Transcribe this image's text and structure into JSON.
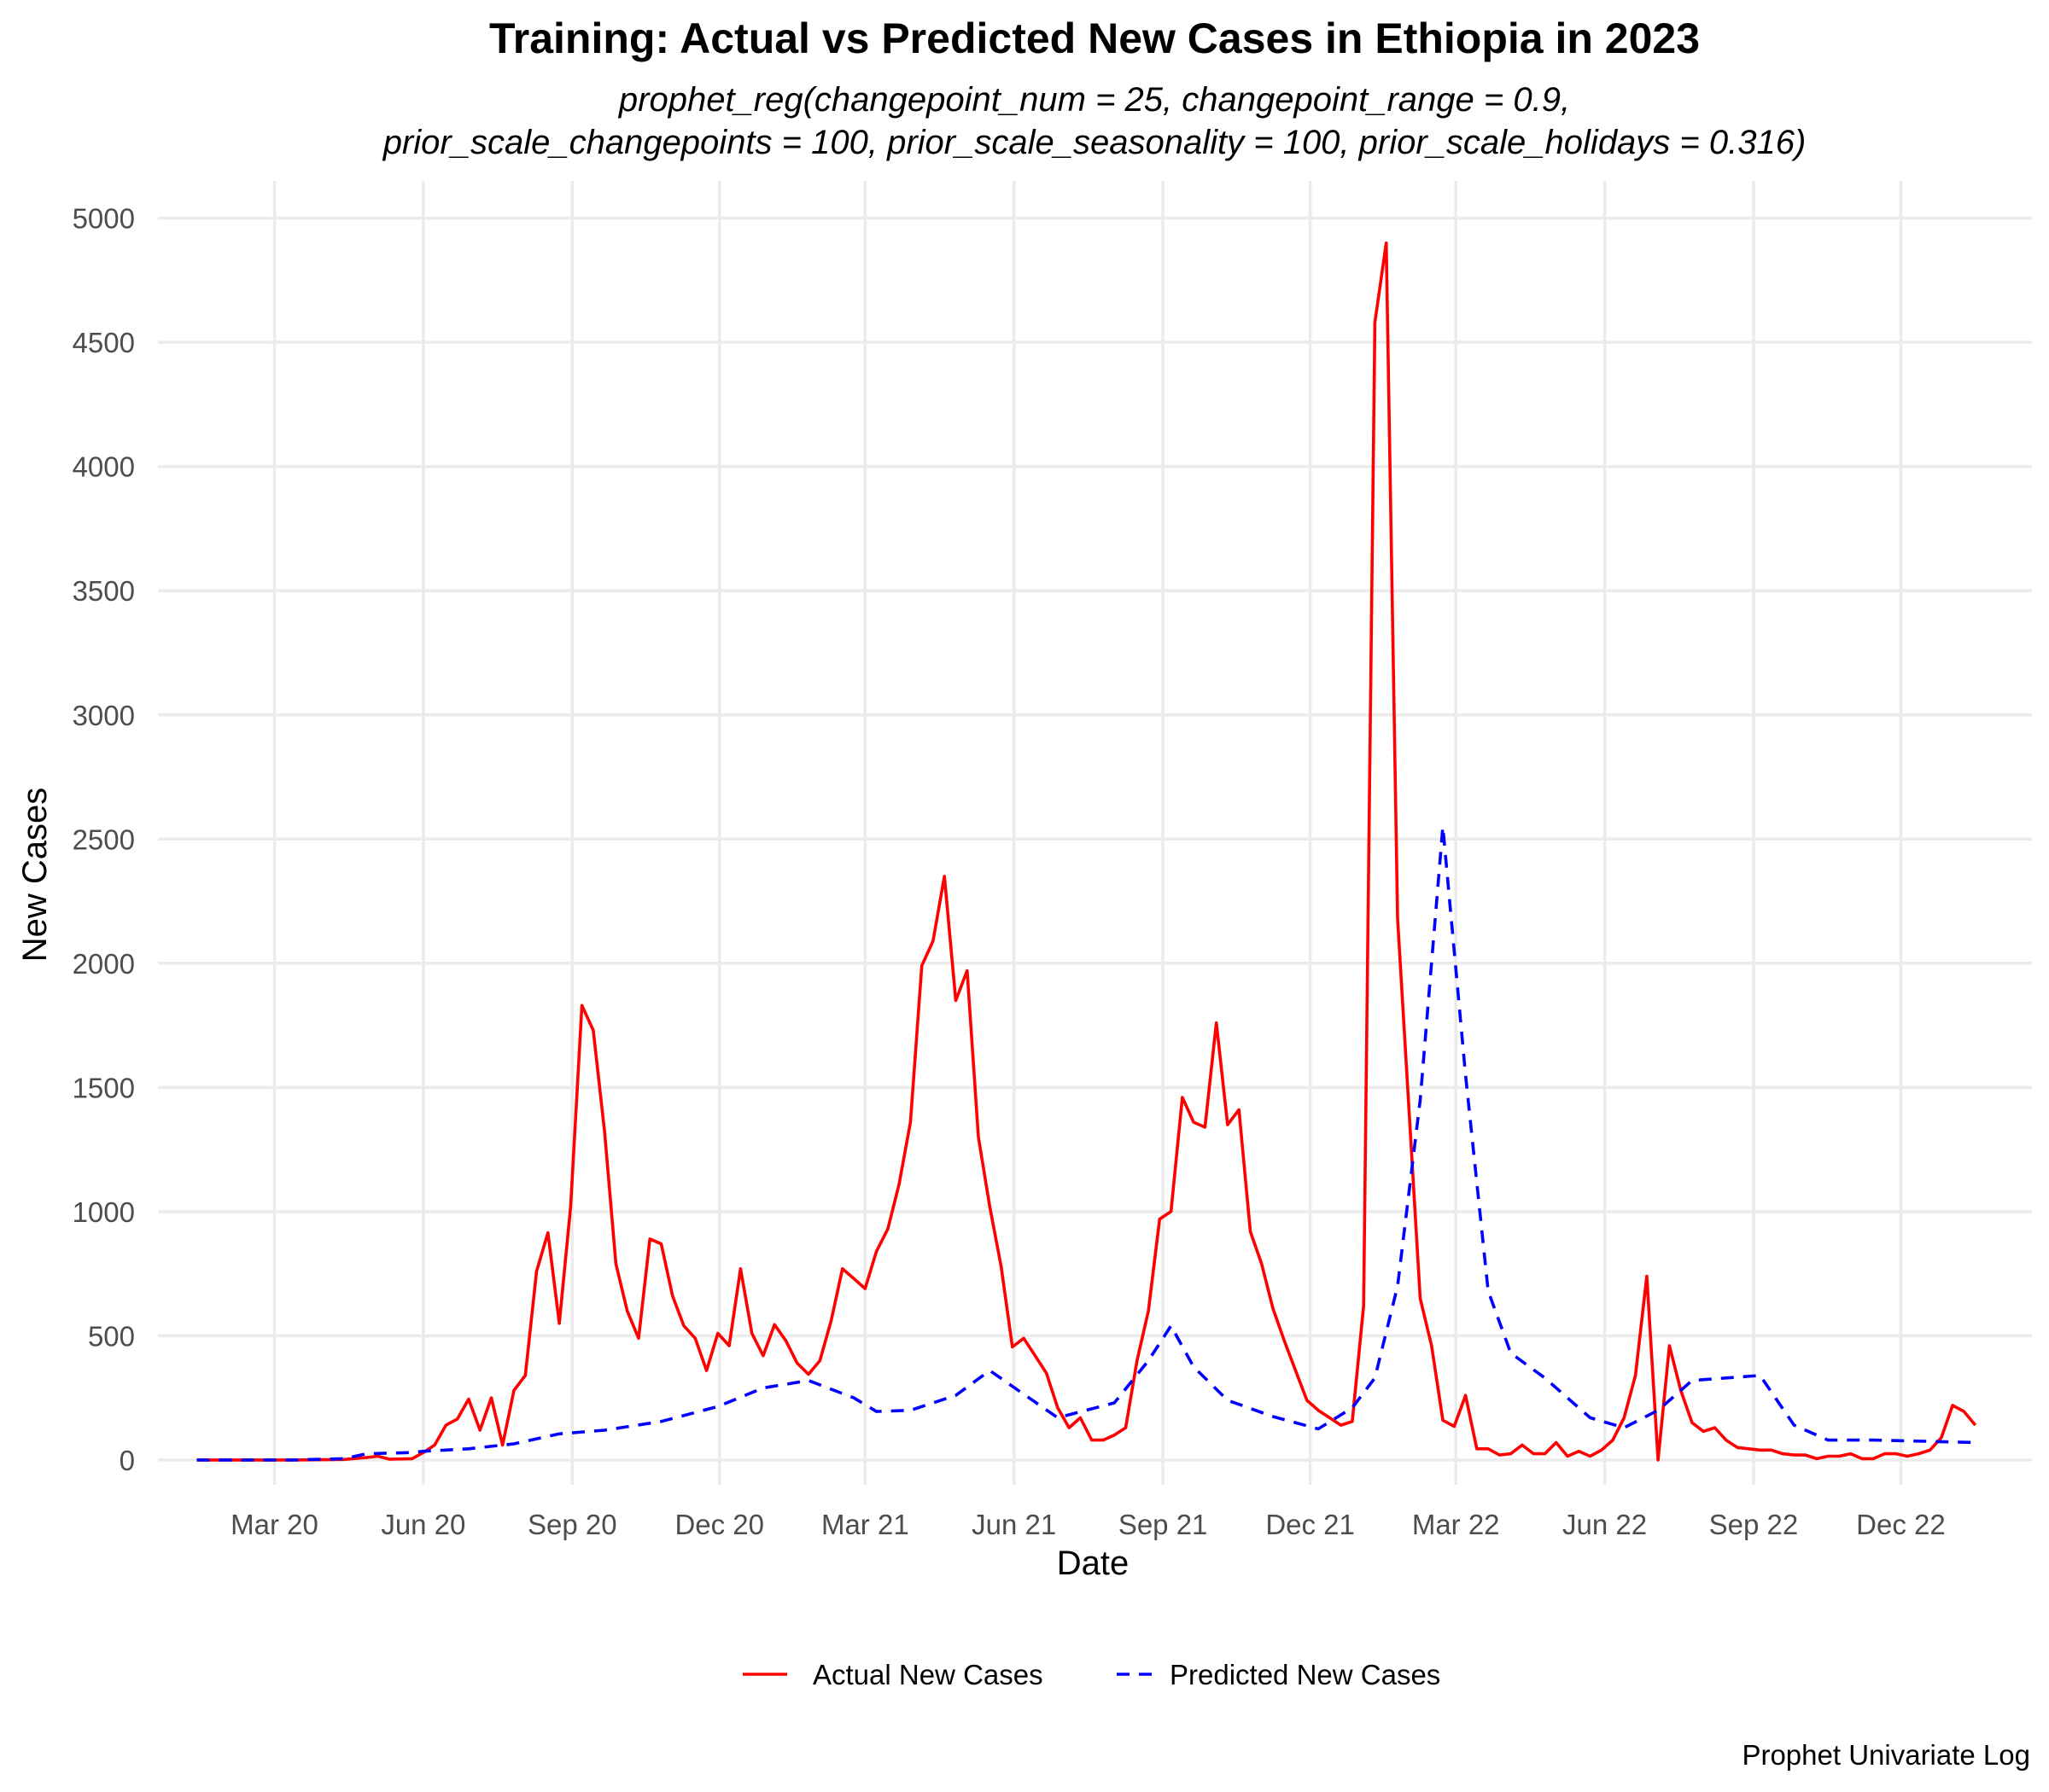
{
  "chart_data": {
    "type": "line",
    "title": "Training: Actual vs Predicted New Cases in Ethiopia in 2023",
    "subtitle_lines": [
      "prophet_reg(changepoint_num = 25, changepoint_range = 0.9,",
      "prior_scale_changepoints = 100, prior_scale_seasonality = 100, prior_scale_holidays = 0.316)"
    ],
    "xlabel": "Date",
    "ylabel": "New Cases",
    "caption": "Prophet Univariate Log",
    "ylim": [
      -100,
      5150
    ],
    "y_ticks": [
      0,
      500,
      1000,
      1500,
      2000,
      2500,
      3000,
      3500,
      4000,
      4500,
      5000
    ],
    "x_ticks": [
      {
        "label": "Mar 20",
        "date": "2020-03-01"
      },
      {
        "label": "Jun 20",
        "date": "2020-06-01"
      },
      {
        "label": "Sep 20",
        "date": "2020-09-01"
      },
      {
        "label": "Dec 20",
        "date": "2020-12-01"
      },
      {
        "label": "Mar 21",
        "date": "2021-03-01"
      },
      {
        "label": "Jun 21",
        "date": "2021-06-01"
      },
      {
        "label": "Sep 21",
        "date": "2021-09-01"
      },
      {
        "label": "Dec 21",
        "date": "2021-12-01"
      },
      {
        "label": "Mar 22",
        "date": "2022-03-01"
      },
      {
        "label": "Jun 22",
        "date": "2022-06-01"
      },
      {
        "label": "Sep 22",
        "date": "2022-09-01"
      },
      {
        "label": "Dec 22",
        "date": "2022-12-01"
      }
    ],
    "xlim": [
      "2019-12-20",
      "2023-02-20"
    ],
    "grid": true,
    "legend_position": "bottom",
    "series": [
      {
        "name": "Actual New Cases",
        "color": "#ff0000",
        "style": "solid",
        "points": [
          [
            "2020-01-13",
            0
          ],
          [
            "2020-02-13",
            0
          ],
          [
            "2020-03-13",
            0
          ],
          [
            "2020-04-13",
            2
          ],
          [
            "2020-04-27",
            10
          ],
          [
            "2020-05-04",
            15
          ],
          [
            "2020-05-11",
            3
          ],
          [
            "2020-05-25",
            5
          ],
          [
            "2020-06-01",
            30
          ],
          [
            "2020-06-08",
            60
          ],
          [
            "2020-06-15",
            140
          ],
          [
            "2020-06-22",
            165
          ],
          [
            "2020-06-29",
            245
          ],
          [
            "2020-07-06",
            120
          ],
          [
            "2020-07-13",
            250
          ],
          [
            "2020-07-20",
            60
          ],
          [
            "2020-07-27",
            280
          ],
          [
            "2020-08-03",
            340
          ],
          [
            "2020-08-10",
            760
          ],
          [
            "2020-08-17",
            915
          ],
          [
            "2020-08-24",
            550
          ],
          [
            "2020-08-31",
            1020
          ],
          [
            "2020-09-07",
            1830
          ],
          [
            "2020-09-14",
            1730
          ],
          [
            "2020-09-21",
            1320
          ],
          [
            "2020-09-28",
            790
          ],
          [
            "2020-10-05",
            600
          ],
          [
            "2020-10-12",
            490
          ],
          [
            "2020-10-19",
            890
          ],
          [
            "2020-10-26",
            870
          ],
          [
            "2020-11-02",
            660
          ],
          [
            "2020-11-09",
            540
          ],
          [
            "2020-11-16",
            490
          ],
          [
            "2020-11-23",
            360
          ],
          [
            "2020-11-30",
            510
          ],
          [
            "2020-12-07",
            460
          ],
          [
            "2020-12-14",
            770
          ],
          [
            "2020-12-21",
            510
          ],
          [
            "2020-12-28",
            420
          ],
          [
            "2021-01-04",
            545
          ],
          [
            "2021-01-11",
            480
          ],
          [
            "2021-01-18",
            390
          ],
          [
            "2021-01-25",
            345
          ],
          [
            "2021-02-01",
            400
          ],
          [
            "2021-02-08",
            560
          ],
          [
            "2021-02-15",
            770
          ],
          [
            "2021-02-22",
            730
          ],
          [
            "2021-03-01",
            690
          ],
          [
            "2021-03-08",
            840
          ],
          [
            "2021-03-15",
            930
          ],
          [
            "2021-03-22",
            1110
          ],
          [
            "2021-03-29",
            1360
          ],
          [
            "2021-04-05",
            1990
          ],
          [
            "2021-04-12",
            2090
          ],
          [
            "2021-04-19",
            2350
          ],
          [
            "2021-04-26",
            1850
          ],
          [
            "2021-05-03",
            1970
          ],
          [
            "2021-05-10",
            1300
          ],
          [
            "2021-05-17",
            1020
          ],
          [
            "2021-05-24",
            780
          ],
          [
            "2021-05-31",
            455
          ],
          [
            "2021-06-07",
            490
          ],
          [
            "2021-06-14",
            420
          ],
          [
            "2021-06-21",
            350
          ],
          [
            "2021-06-28",
            210
          ],
          [
            "2021-07-05",
            130
          ],
          [
            "2021-07-12",
            170
          ],
          [
            "2021-07-19",
            80
          ],
          [
            "2021-07-26",
            80
          ],
          [
            "2021-08-02",
            100
          ],
          [
            "2021-08-09",
            130
          ],
          [
            "2021-08-16",
            400
          ],
          [
            "2021-08-23",
            600
          ],
          [
            "2021-08-30",
            970
          ],
          [
            "2021-09-06",
            1000
          ],
          [
            "2021-09-13",
            1460
          ],
          [
            "2021-09-20",
            1360
          ],
          [
            "2021-09-27",
            1340
          ],
          [
            "2021-10-04",
            1760
          ],
          [
            "2021-10-11",
            1350
          ],
          [
            "2021-10-18",
            1410
          ],
          [
            "2021-10-25",
            920
          ],
          [
            "2021-11-01",
            790
          ],
          [
            "2021-11-08",
            610
          ],
          [
            "2021-11-15",
            480
          ],
          [
            "2021-11-22",
            360
          ],
          [
            "2021-11-29",
            240
          ],
          [
            "2021-12-06",
            200
          ],
          [
            "2021-12-13",
            170
          ],
          [
            "2021-12-20",
            140
          ],
          [
            "2021-12-27",
            155
          ],
          [
            "2022-01-03",
            620
          ],
          [
            "2022-01-10",
            4580
          ],
          [
            "2022-01-17",
            4900
          ],
          [
            "2022-01-24",
            2180
          ],
          [
            "2022-01-31",
            1420
          ],
          [
            "2022-02-07",
            650
          ],
          [
            "2022-02-14",
            460
          ],
          [
            "2022-02-21",
            160
          ],
          [
            "2022-02-28",
            135
          ],
          [
            "2022-03-07",
            260
          ],
          [
            "2022-03-14",
            45
          ],
          [
            "2022-03-21",
            45
          ],
          [
            "2022-03-28",
            20
          ],
          [
            "2022-04-04",
            25
          ],
          [
            "2022-04-11",
            60
          ],
          [
            "2022-04-18",
            25
          ],
          [
            "2022-04-25",
            25
          ],
          [
            "2022-05-02",
            70
          ],
          [
            "2022-05-09",
            15
          ],
          [
            "2022-05-16",
            35
          ],
          [
            "2022-05-23",
            15
          ],
          [
            "2022-05-30",
            40
          ],
          [
            "2022-06-06",
            80
          ],
          [
            "2022-06-13",
            170
          ],
          [
            "2022-06-20",
            340
          ],
          [
            "2022-06-27",
            740
          ],
          [
            "2022-07-04",
            0
          ],
          [
            "2022-07-11",
            460
          ],
          [
            "2022-07-18",
            280
          ],
          [
            "2022-07-25",
            150
          ],
          [
            "2022-08-01",
            115
          ],
          [
            "2022-08-08",
            130
          ],
          [
            "2022-08-15",
            80
          ],
          [
            "2022-08-22",
            50
          ],
          [
            "2022-08-29",
            45
          ],
          [
            "2022-09-05",
            40
          ],
          [
            "2022-09-12",
            40
          ],
          [
            "2022-09-19",
            25
          ],
          [
            "2022-09-26",
            20
          ],
          [
            "2022-10-03",
            20
          ],
          [
            "2022-10-10",
            5
          ],
          [
            "2022-10-17",
            15
          ],
          [
            "2022-10-24",
            15
          ],
          [
            "2022-10-31",
            25
          ],
          [
            "2022-11-07",
            5
          ],
          [
            "2022-11-14",
            5
          ],
          [
            "2022-11-21",
            25
          ],
          [
            "2022-11-28",
            25
          ],
          [
            "2022-12-05",
            15
          ],
          [
            "2022-12-12",
            25
          ],
          [
            "2022-12-19",
            40
          ],
          [
            "2022-12-26",
            90
          ],
          [
            "2023-01-02",
            220
          ],
          [
            "2023-01-09",
            195
          ],
          [
            "2023-01-16",
            140
          ]
        ]
      },
      {
        "name": "Predicted New Cases",
        "color": "#0000ff",
        "style": "dashed",
        "points": [
          [
            "2020-01-13",
            0
          ],
          [
            "2020-02-13",
            0
          ],
          [
            "2020-03-13",
            0
          ],
          [
            "2020-04-13",
            5
          ],
          [
            "2020-04-27",
            25
          ],
          [
            "2020-05-25",
            30
          ],
          [
            "2020-06-01",
            35
          ],
          [
            "2020-06-29",
            45
          ],
          [
            "2020-07-27",
            65
          ],
          [
            "2020-08-24",
            105
          ],
          [
            "2020-09-21",
            120
          ],
          [
            "2020-10-26",
            155
          ],
          [
            "2020-11-30",
            215
          ],
          [
            "2020-12-28",
            290
          ],
          [
            "2021-01-25",
            320
          ],
          [
            "2021-02-22",
            250
          ],
          [
            "2021-03-08",
            195
          ],
          [
            "2021-03-29",
            200
          ],
          [
            "2021-04-26",
            260
          ],
          [
            "2021-05-17",
            360
          ],
          [
            "2021-06-07",
            265
          ],
          [
            "2021-06-28",
            170
          ],
          [
            "2021-08-02",
            230
          ],
          [
            "2021-08-23",
            400
          ],
          [
            "2021-09-06",
            540
          ],
          [
            "2021-09-20",
            375
          ],
          [
            "2021-10-11",
            240
          ],
          [
            "2021-11-08",
            175
          ],
          [
            "2021-12-06",
            125
          ],
          [
            "2021-12-27",
            210
          ],
          [
            "2022-01-10",
            330
          ],
          [
            "2022-01-24",
            700
          ],
          [
            "2022-02-07",
            1450
          ],
          [
            "2022-02-21",
            2550
          ],
          [
            "2022-03-07",
            1550
          ],
          [
            "2022-03-21",
            680
          ],
          [
            "2022-04-04",
            430
          ],
          [
            "2022-04-25",
            330
          ],
          [
            "2022-05-23",
            170
          ],
          [
            "2022-06-13",
            130
          ],
          [
            "2022-07-04",
            200
          ],
          [
            "2022-07-25",
            320
          ],
          [
            "2022-08-15",
            330
          ],
          [
            "2022-09-05",
            340
          ],
          [
            "2022-09-26",
            140
          ],
          [
            "2022-10-17",
            80
          ],
          [
            "2022-11-14",
            80
          ],
          [
            "2022-12-19",
            75
          ],
          [
            "2023-01-16",
            70
          ]
        ]
      }
    ]
  }
}
